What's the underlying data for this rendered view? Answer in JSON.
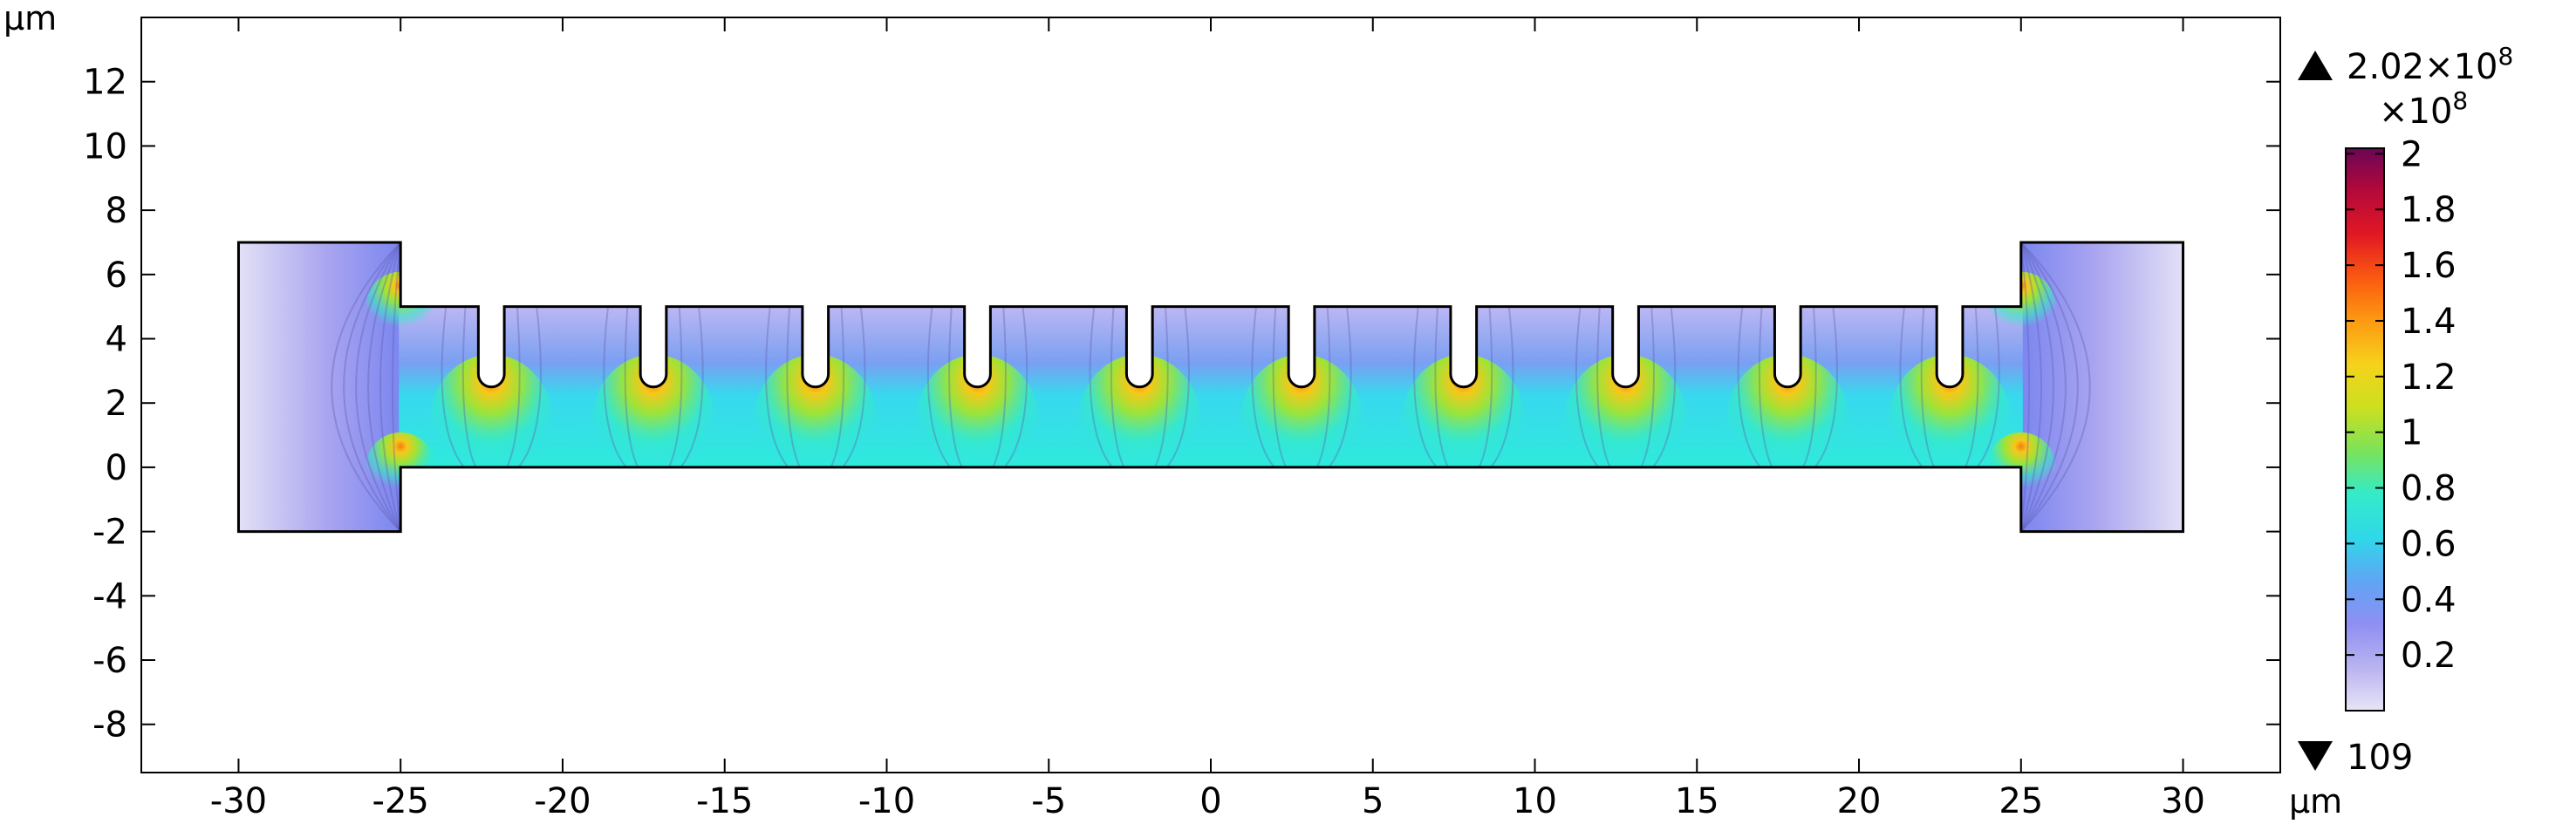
{
  "chart_data": {
    "type": "heatmap",
    "x_unit": "µm",
    "y_unit": "µm",
    "xlim": [
      -33,
      33
    ],
    "ylim": [
      -9.5,
      14
    ],
    "x_ticks": [
      -30,
      -25,
      -20,
      -15,
      -10,
      -5,
      0,
      5,
      10,
      15,
      20,
      25,
      30
    ],
    "x_tick_labels": [
      "-30",
      "-25",
      "-20",
      "-15",
      "-10",
      "-5",
      "0",
      "5",
      "10",
      "15",
      "20",
      "25",
      "30"
    ],
    "y_ticks": [
      -8,
      -6,
      -4,
      -2,
      0,
      2,
      4,
      6,
      8,
      10,
      12
    ],
    "y_tick_labels": [
      "-8",
      "-6",
      "-4",
      "-2",
      "0",
      "2",
      "4",
      "6",
      "8",
      "10",
      "12"
    ],
    "geometry": {
      "left_pad": {
        "x": [
          -30,
          -25
        ],
        "y": [
          -2,
          7
        ]
      },
      "right_pad": {
        "x": [
          25,
          30
        ],
        "y": [
          -2,
          7
        ]
      },
      "beam": {
        "x": [
          -25,
          25
        ],
        "y": [
          0,
          5
        ]
      },
      "notch_centers": [
        -22.2,
        -17.2,
        -12.2,
        -7.2,
        -2.2,
        2.8,
        7.8,
        12.8,
        17.8,
        22.8
      ],
      "notch_width": 0.8,
      "notch_bottom_y": 2.5
    },
    "colorbar": {
      "exponent_label": "×10",
      "exponent_power": "8",
      "max_label": "2.02×10",
      "max_label_power": "8",
      "min_label": "109",
      "ticks": [
        0.2,
        0.4,
        0.6,
        0.8,
        1,
        1.2,
        1.4,
        1.6,
        1.8,
        2
      ],
      "tick_labels": [
        "0.2",
        "0.4",
        "0.6",
        "0.8",
        "1",
        "1.2",
        "1.4",
        "1.6",
        "1.8",
        "2"
      ],
      "range": [
        0,
        2.02
      ],
      "colormap": [
        "#e7e5f6",
        "#b9b3f0",
        "#8f8ff2",
        "#5fa5f5",
        "#2fd8e8",
        "#34ebc9",
        "#7be25a",
        "#cbe01f",
        "#f6d21c",
        "#fd9a12",
        "#fa5a10",
        "#e21823",
        "#b5093a",
        "#6a0655"
      ]
    },
    "colors": {
      "low": "#d8d5f4",
      "mid": "#9a94ee",
      "beam": "#2fe6d8",
      "hot": "#f5c81a",
      "outline": "#000000"
    }
  }
}
